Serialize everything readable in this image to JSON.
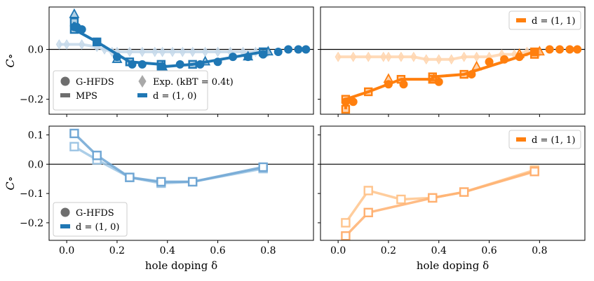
{
  "figure": {
    "xlabel": "hole doping δ",
    "ylabel": "C∘",
    "colors": {
      "blue_dark": "#1f77b4",
      "blue_light": "#9ec5e4",
      "blue_mid": "#6fa6d4",
      "orange_dark": "#ff7f0e",
      "orange_light": "#ffcf9f",
      "exp_gray": "#a9a9a9",
      "legend_gray": "#6e6e6e"
    }
  },
  "chart_data": [
    {
      "panel": "top-left",
      "type": "line",
      "xlim": [
        -0.07,
        0.98
      ],
      "ylim": [
        -0.26,
        0.17
      ],
      "xticks": [
        0.0,
        0.2,
        0.4,
        0.6,
        0.8
      ],
      "yticks": [
        0.0,
        -0.2
      ],
      "ytick_labels": [
        "0.0",
        "−0.2"
      ],
      "show_xtick_labels": false,
      "show_ytick_labels": true,
      "ylabel": "C∘",
      "series": [
        {
          "role": "exp",
          "marker": "diamond",
          "color": "#c6d9ea",
          "x": [
            -0.03,
            0.0,
            0.06,
            0.12,
            0.15,
            0.18,
            0.2,
            0.25,
            0.3,
            0.35,
            0.38,
            0.42,
            0.46,
            0.5,
            0.55,
            0.6,
            0.65,
            0.7,
            0.75,
            0.8
          ],
          "y": [
            0.02,
            0.02,
            0.02,
            0.01,
            0.0,
            -0.01,
            -0.01,
            -0.01,
            -0.01,
            -0.01,
            -0.01,
            -0.01,
            -0.01,
            -0.01,
            -0.01,
            -0.01,
            -0.01,
            -0.01,
            -0.01,
            -0.01
          ]
        },
        {
          "role": "mps",
          "marker": "square",
          "color": "#1f77b4",
          "x": [
            0.03,
            0.03,
            0.12,
            0.25,
            0.375,
            0.375,
            0.5,
            0.78,
            0.78
          ],
          "y": [
            0.11,
            0.08,
            0.03,
            -0.05,
            -0.06,
            -0.07,
            -0.06,
            -0.01,
            -0.01
          ]
        },
        {
          "role": "hfds",
          "marker": "circle",
          "color": "#1f77b4",
          "x": [
            0.03,
            0.04,
            0.06,
            0.12,
            0.2,
            0.26,
            0.3,
            0.38,
            0.45,
            0.53,
            0.6,
            0.66,
            0.72,
            0.78,
            0.84,
            0.88,
            0.92,
            0.95
          ],
          "y": [
            0.09,
            0.09,
            0.08,
            0.03,
            -0.03,
            -0.06,
            -0.06,
            -0.07,
            -0.06,
            -0.06,
            -0.05,
            -0.03,
            -0.03,
            -0.02,
            -0.01,
            0.0,
            0.0,
            0.0
          ]
        },
        {
          "role": "hfds_tri",
          "marker": "triangle",
          "color": "#1f77b4",
          "x": [
            0.03,
            0.2,
            0.38,
            0.55,
            0.72,
            0.8
          ],
          "y": [
            0.14,
            -0.04,
            -0.07,
            -0.05,
            -0.03,
            -0.01
          ]
        }
      ],
      "legend": {
        "placement": "lower-left",
        "entries": [
          {
            "marker": "circle",
            "color": "#6e6e6e",
            "label": "G-HFDS"
          },
          {
            "marker": "diamond",
            "color": "#a9a9a9",
            "label": "Exp. (kBT = 0.4t)"
          },
          {
            "marker": "bar",
            "color": "#6e6e6e",
            "label": "MPS"
          },
          {
            "marker": "bar",
            "color": "#1f77b4",
            "label": "d = (1, 0)"
          }
        ]
      }
    },
    {
      "panel": "top-right",
      "type": "line",
      "xlim": [
        -0.07,
        0.98
      ],
      "ylim": [
        -0.26,
        0.17
      ],
      "xticks": [
        0.0,
        0.2,
        0.4,
        0.6,
        0.8
      ],
      "yticks": [
        0.0,
        -0.2
      ],
      "show_xtick_labels": false,
      "show_ytick_labels": false,
      "series": [
        {
          "role": "exp",
          "marker": "diamond",
          "color": "#ffd6b0",
          "x": [
            0.0,
            0.06,
            0.12,
            0.18,
            0.2,
            0.25,
            0.3,
            0.35,
            0.4,
            0.45,
            0.5,
            0.55,
            0.6,
            0.65,
            0.7,
            0.75,
            0.8
          ],
          "y": [
            -0.03,
            -0.03,
            -0.03,
            -0.03,
            -0.03,
            -0.03,
            -0.03,
            -0.04,
            -0.04,
            -0.04,
            -0.03,
            -0.03,
            -0.03,
            -0.02,
            -0.02,
            -0.01,
            -0.01
          ]
        },
        {
          "role": "mps",
          "marker": "square",
          "color": "#ff7f0e",
          "x": [
            0.03,
            0.03,
            0.12,
            0.25,
            0.375,
            0.375,
            0.5,
            0.78,
            0.78
          ],
          "y": [
            -0.24,
            -0.2,
            -0.17,
            -0.12,
            -0.12,
            -0.11,
            -0.1,
            -0.01,
            -0.02
          ]
        },
        {
          "role": "hfds",
          "marker": "circle",
          "color": "#ff7f0e",
          "x": [
            0.03,
            0.06,
            0.2,
            0.26,
            0.4,
            0.53,
            0.6,
            0.66,
            0.72,
            0.78,
            0.84,
            0.88,
            0.92,
            0.95
          ],
          "y": [
            -0.21,
            -0.21,
            -0.14,
            -0.14,
            -0.13,
            -0.1,
            -0.05,
            -0.04,
            -0.03,
            -0.01,
            0.0,
            0.0,
            0.0,
            0.0
          ]
        },
        {
          "role": "hfds_tri",
          "marker": "triangle",
          "color": "#ff7f0e",
          "x": [
            0.2,
            0.38,
            0.55,
            0.72,
            0.8
          ],
          "y": [
            -0.12,
            -0.12,
            -0.07,
            -0.02,
            -0.01
          ]
        }
      ],
      "legend": {
        "placement": "upper-right",
        "entries": [
          {
            "marker": "bar",
            "color": "#ff7f0e",
            "label": "d = (1, 1)"
          }
        ]
      }
    },
    {
      "panel": "bottom-left",
      "type": "line",
      "xlim": [
        -0.07,
        0.98
      ],
      "ylim": [
        -0.26,
        0.13
      ],
      "xticks": [
        0.0,
        0.2,
        0.4,
        0.6,
        0.8
      ],
      "xtick_labels": [
        "0.0",
        "0.2",
        "0.4",
        "0.6",
        "0.8"
      ],
      "yticks": [
        0.1,
        0.0,
        -0.1,
        -0.2
      ],
      "ytick_labels": [
        "0.1",
        "0.0",
        "−0.1",
        "−0.2"
      ],
      "show_xtick_labels": true,
      "show_ytick_labels": true,
      "ylabel": "C∘",
      "xlabel": "hole doping δ",
      "series": [
        {
          "role": "line_a",
          "marker": "square",
          "color": "#9ec5e4",
          "x": [
            0.03,
            0.12,
            0.25,
            0.375,
            0.5,
            0.78
          ],
          "y": [
            0.06,
            0.015,
            -0.045,
            -0.065,
            -0.06,
            -0.015
          ]
        },
        {
          "role": "line_b",
          "marker": "square",
          "color": "#6fa6d4",
          "x": [
            0.03,
            0.12,
            0.25,
            0.375,
            0.5,
            0.78
          ],
          "y": [
            0.105,
            0.03,
            -0.045,
            -0.06,
            -0.06,
            -0.01
          ]
        }
      ],
      "legend": {
        "placement": "lower-left",
        "entries": [
          {
            "marker": "circle",
            "color": "#6e6e6e",
            "label": "G-HFDS"
          },
          {
            "marker": "bar",
            "color": "#1f77b4",
            "label": "d = (1, 0)"
          }
        ]
      }
    },
    {
      "panel": "bottom-right",
      "type": "line",
      "xlim": [
        -0.07,
        0.98
      ],
      "ylim": [
        -0.26,
        0.13
      ],
      "xticks": [
        0.0,
        0.2,
        0.4,
        0.6,
        0.8
      ],
      "xtick_labels": [
        "0.0",
        "0.2",
        "0.4",
        "0.6",
        "0.8"
      ],
      "yticks": [
        0.1,
        0.0,
        -0.1,
        -0.2
      ],
      "show_xtick_labels": true,
      "show_ytick_labels": false,
      "xlabel": "hole doping δ",
      "series": [
        {
          "role": "line_a",
          "marker": "square",
          "color": "#ffc48c",
          "x": [
            0.03,
            0.12,
            0.25,
            0.375,
            0.5,
            0.78
          ],
          "y": [
            -0.2,
            -0.09,
            -0.12,
            -0.115,
            -0.095,
            -0.02
          ]
        },
        {
          "role": "line_b",
          "marker": "square",
          "color": "#ffb070",
          "x": [
            0.03,
            0.12,
            0.375,
            0.5,
            0.78
          ],
          "y": [
            -0.245,
            -0.165,
            -0.115,
            -0.095,
            -0.025
          ]
        }
      ],
      "legend": {
        "placement": "upper-right",
        "entries": [
          {
            "marker": "bar",
            "color": "#ff7f0e",
            "label": "d = (1, 1)"
          }
        ]
      }
    }
  ]
}
